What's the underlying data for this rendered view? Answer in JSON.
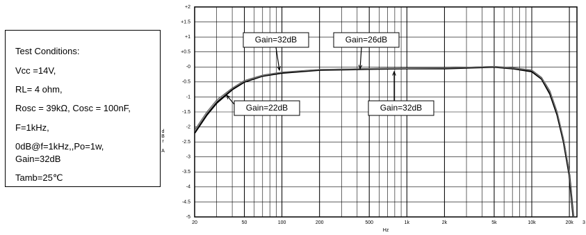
{
  "test_conditions": [
    "Test  Conditions:",
    "Vcc =14V,",
    "RL= 4 ohm,",
    "Rosc = 39kΩ, Cosc = 100nF,",
    "F=1kHz,",
    "0dB@f=1kHz,,Po=1w,",
    "Gain=32dB",
    "Tamb=25℃"
  ],
  "chart_data": {
    "type": "line",
    "ylabel": "dBr A",
    "xlabel": "Hz",
    "x": [
      20,
      25,
      30,
      40,
      50,
      70,
      100,
      200,
      500,
      1000,
      2000,
      5000,
      7000,
      10000,
      12000,
      14000,
      16000,
      18000,
      20000,
      21500
    ],
    "series": [
      {
        "color": "#000000",
        "values": [
          -2.2,
          -1.6,
          -1.2,
          -0.75,
          -0.5,
          -0.3,
          -0.2,
          -0.1,
          -0.07,
          -0.05,
          -0.05,
          0,
          -0.05,
          -0.15,
          -0.4,
          -0.9,
          -1.6,
          -2.5,
          -3.6,
          -5
        ]
      },
      {
        "color": "#555555",
        "values": [
          -2.1,
          -1.5,
          -1.1,
          -0.7,
          -0.45,
          -0.27,
          -0.17,
          -0.08,
          -0.05,
          -0.04,
          -0.03,
          0.02,
          -0.02,
          -0.1,
          -0.35,
          -0.8,
          -1.5,
          -2.4,
          -3.5,
          -5
        ]
      },
      {
        "color": "#777777",
        "values": [
          -2.15,
          -1.55,
          -1.15,
          -0.72,
          -0.48,
          -0.29,
          -0.18,
          -0.09,
          -0.06,
          -0.05,
          -0.04,
          0.01,
          -0.04,
          -0.12,
          -0.38,
          -0.85,
          -1.55,
          -2.45,
          -3.55,
          -5
        ]
      }
    ],
    "annotations": [
      "Gain=32dB",
      "Gain=26dB",
      "Gain=22dB",
      "Gain=32dB"
    ],
    "xscale": "log",
    "grid": true,
    "minor_grid": true,
    "xlim": [
      20,
      23000
    ],
    "x_end_label": "3",
    "xticks": [
      20,
      50,
      100,
      200,
      500,
      {
        "value": 1000,
        "label": "1k"
      },
      {
        "value": 2000,
        "label": "2k"
      },
      {
        "value": 5000,
        "label": "5k"
      },
      {
        "value": 10000,
        "label": "10k"
      },
      {
        "value": 20000,
        "label": "20k"
      }
    ],
    "ylim": [
      -5,
      2
    ],
    "yticks": [
      {
        "value": 2,
        "label": "+2"
      },
      {
        "value": 1.5,
        "label": "+1.5"
      },
      {
        "value": 1,
        "label": "+1"
      },
      {
        "value": 0.5,
        "label": "+0.5"
      },
      {
        "value": 0,
        "label": "-0"
      },
      -0.5,
      -1,
      -1.5,
      -2,
      -2.5,
      -3,
      -3.5,
      -4,
      -4.5,
      -5
    ]
  }
}
